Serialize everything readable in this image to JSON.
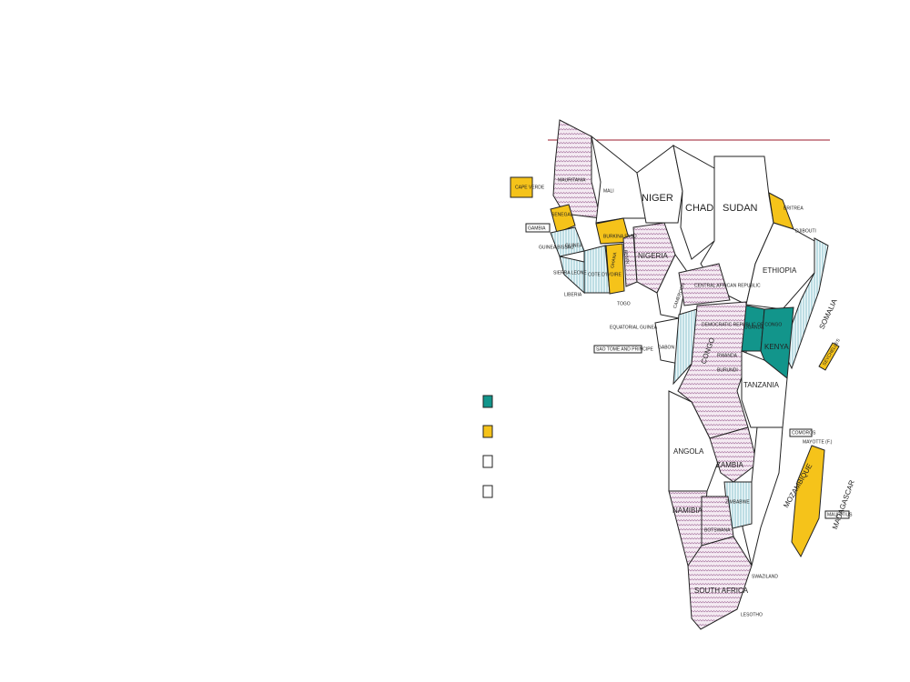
{
  "map": {
    "labels": [
      "CAPE VERDE",
      "MAURITANIA",
      "MALI",
      "NIGER",
      "CHAD",
      "SUDAN",
      "ERITREA",
      "DJIBOUTI",
      "SENEGAL",
      "GAMBIA",
      "GUINEA BISSAU",
      "GUINEA",
      "BURKINA FASO",
      "GHANA",
      "BENIN",
      "NIGERIA",
      "SIERRA LEONE",
      "COTE D'IVOIRE",
      "LIBERIA",
      "TOGO",
      "ETHIOPIA",
      "SOMALIA",
      "CENTRAL AFRICAN REPUBLIC",
      "CAMEROON",
      "EQUATORIAL GUINEA",
      "SAO TOME AND PRINCIPE",
      "GABON",
      "CONGO",
      "DEMOCRATIC REPUBLIC OF CONGO",
      "UGANDA",
      "KENYA",
      "RWANDA",
      "BURUNDI",
      "TANZANIA",
      "SEYCHELLES",
      "COMOROS",
      "MAYOTTE (F.)",
      "ANGOLA",
      "ZAMBIA",
      "MOZAMBIQUE",
      "MADAGASCAR",
      "ZIMBABWE",
      "NAMIBIA",
      "BOTSWANA",
      "MAURITIUS",
      "SWAZILAND",
      "SOUTH AFRICA",
      "LESOTHO"
    ],
    "legend": [
      "#12958b",
      "#f5c31a",
      "#ffffff",
      "#ffffff"
    ]
  }
}
